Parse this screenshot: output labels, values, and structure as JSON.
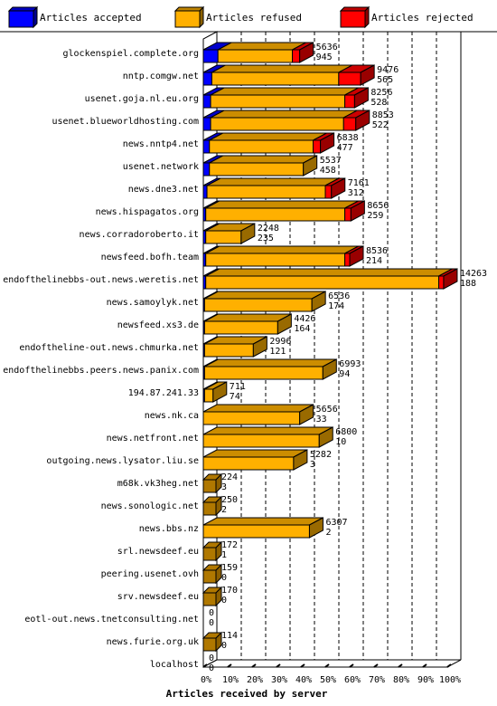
{
  "chart_data": {
    "type": "bar",
    "orientation": "horizontal",
    "stacked": true,
    "xlabel": "Articles received by server",
    "ylabel": "",
    "xlim": [
      0,
      100
    ],
    "x_unit": "%",
    "ticks": [
      "0%",
      "10%",
      "20%",
      "30%",
      "40%",
      "50%",
      "60%",
      "70%",
      "80%",
      "90%",
      "100%"
    ],
    "legend": {
      "position": "top",
      "entries": [
        {
          "name": "Articles accepted",
          "color": "#0000ff"
        },
        {
          "name": "Articles refused",
          "color": "#ffb000"
        },
        {
          "name": "Articles rejected",
          "color": "#ff0000"
        }
      ]
    },
    "colors": {
      "accepted": "#0000ff",
      "refused": "#ffb000",
      "rejected": "#ff0000",
      "refused_dark": "#b07800"
    },
    "categories": [
      "glockenspiel.complete.org",
      "nntp.comgw.net",
      "usenet.goja.nl.eu.org",
      "usenet.blueworldhosting.com",
      "news.nntp4.net",
      "usenet.network",
      "news.dne3.net",
      "news.hispagatos.org",
      "news.corradoroberto.it",
      "newsfeed.bofh.team",
      "endofthelinebbs-out.news.weretis.net",
      "news.samoylyk.net",
      "newsfeed.xs3.de",
      "endoftheline-out.news.chmurka.net",
      "endofthelinebbs.peers.news.panix.com",
      "194.87.241.33",
      "news.nk.ca",
      "news.netfront.net",
      "outgoing.news.lysator.liu.se",
      "m68k.vk3heg.net",
      "news.sonologic.net",
      "news.bbs.nz",
      "srl.newsdeef.eu",
      "peering.usenet.ovh",
      "srv.newsdeef.eu",
      "eotl-out.news.tnetconsulting.net",
      "news.furie.org.uk",
      "localhost"
    ],
    "labels_total": [
      "5636",
      "9476",
      "8256",
      "8853",
      "6838",
      "5537",
      "7161",
      "8656",
      "2248",
      "8536",
      "14263",
      "6536",
      "4426",
      "2996",
      "6993",
      "711",
      "5656",
      "6800",
      "5282",
      "224",
      "250",
      "6307",
      "172",
      "159",
      "170",
      "0",
      "114",
      "0"
    ],
    "labels_second": [
      "945",
      "565",
      "528",
      "522",
      "477",
      "458",
      "312",
      "259",
      "235",
      "214",
      "188",
      "174",
      "164",
      "121",
      "94",
      "74",
      "33",
      "10",
      "3",
      "3",
      "2",
      "2",
      "1",
      "0",
      "0",
      "0",
      "0",
      "0"
    ],
    "series": [
      {
        "name": "Articles accepted",
        "values": [
          6.0,
          3.5,
          3.0,
          3.0,
          2.5,
          2.5,
          1.5,
          1.0,
          1.0,
          1.0,
          1.0,
          0.5,
          0.5,
          0.5,
          0.5,
          0.5,
          0,
          0,
          0,
          0,
          0,
          0,
          0,
          0,
          0,
          0,
          0,
          0
        ]
      },
      {
        "name": "Articles refused",
        "values": [
          30.5,
          52.0,
          55.0,
          54.5,
          42.5,
          38.5,
          48.5,
          57.0,
          14.5,
          57.0,
          95.5,
          44.0,
          30.0,
          20.0,
          48.5,
          3.5,
          39.5,
          47.5,
          37.0,
          0,
          0,
          43.5,
          0,
          0,
          0,
          0,
          0,
          0
        ]
      },
      {
        "name": "Articles rejected",
        "values": [
          3.0,
          9.0,
          4.0,
          5.0,
          3.0,
          0,
          2.5,
          2.5,
          0,
          2.0,
          2.0,
          0,
          0,
          0,
          0,
          0,
          0,
          0,
          0,
          0,
          0,
          0,
          0,
          0,
          0,
          0,
          0,
          0
        ]
      }
    ],
    "grid": {
      "vertical": true,
      "style": "dashed"
    }
  }
}
